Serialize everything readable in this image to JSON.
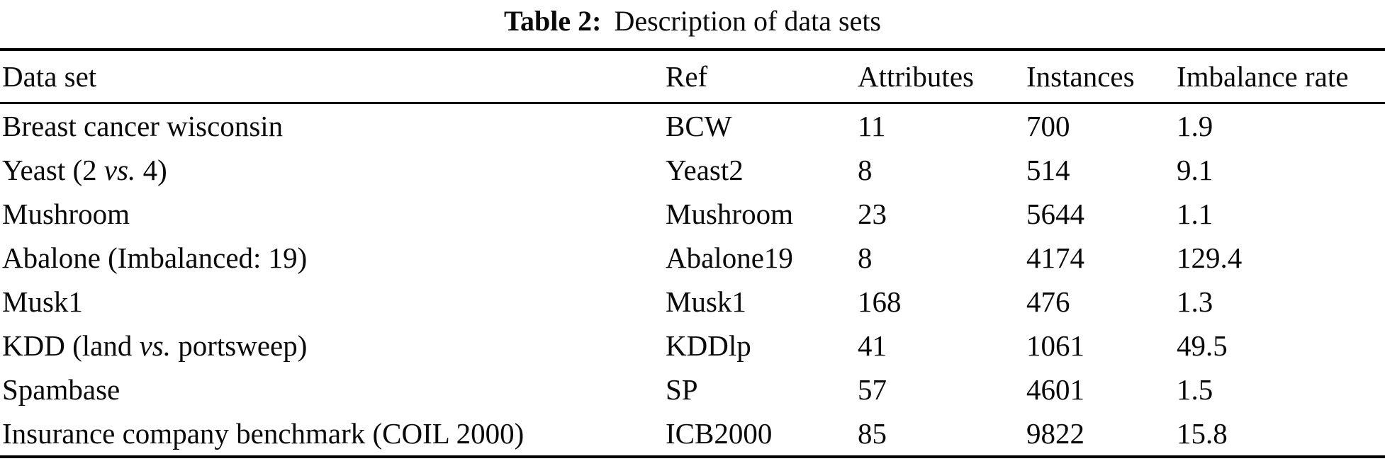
{
  "caption": {
    "label": "Table 2:",
    "title": "Description of data sets"
  },
  "table": {
    "columns": [
      {
        "key": "dataset",
        "label": "Data set"
      },
      {
        "key": "ref",
        "label": "Ref"
      },
      {
        "key": "attributes",
        "label": "Attributes"
      },
      {
        "key": "instances",
        "label": "Instances"
      },
      {
        "key": "imbalance",
        "label": "Imbalance rate"
      }
    ],
    "rows": [
      {
        "dataset": [
          {
            "text": "Breast cancer wisconsin"
          }
        ],
        "ref": "BCW",
        "attributes": "11",
        "instances": "700",
        "imbalance": "1.9"
      },
      {
        "dataset": [
          {
            "text": "Yeast (2 "
          },
          {
            "text": "vs.",
            "italic": true
          },
          {
            "text": " 4)"
          }
        ],
        "ref": "Yeast2",
        "attributes": "8",
        "instances": "514",
        "imbalance": "9.1"
      },
      {
        "dataset": [
          {
            "text": "Mushroom"
          }
        ],
        "ref": "Mushroom",
        "attributes": "23",
        "instances": "5644",
        "imbalance": "1.1"
      },
      {
        "dataset": [
          {
            "text": "Abalone (Imbalanced: 19)"
          }
        ],
        "ref": "Abalone19",
        "attributes": "8",
        "instances": "4174",
        "imbalance": "129.4"
      },
      {
        "dataset": [
          {
            "text": "Musk1"
          }
        ],
        "ref": "Musk1",
        "attributes": "168",
        "instances": "476",
        "imbalance": "1.3"
      },
      {
        "dataset": [
          {
            "text": "KDD (land "
          },
          {
            "text": "vs.",
            "italic": true
          },
          {
            "text": " portsweep)"
          }
        ],
        "ref": "KDDlp",
        "attributes": "41",
        "instances": "1061",
        "imbalance": "49.5"
      },
      {
        "dataset": [
          {
            "text": "Spambase"
          }
        ],
        "ref": "SP",
        "attributes": "57",
        "instances": "4601",
        "imbalance": "1.5"
      },
      {
        "dataset": [
          {
            "text": "Insurance company benchmark (COIL 2000)"
          }
        ],
        "ref": "ICB2000",
        "attributes": "85",
        "instances": "9822",
        "imbalance": "15.8"
      }
    ]
  },
  "colors": {
    "background": "#ffffff",
    "text": "#0a0a0a",
    "rule": "#000000"
  }
}
